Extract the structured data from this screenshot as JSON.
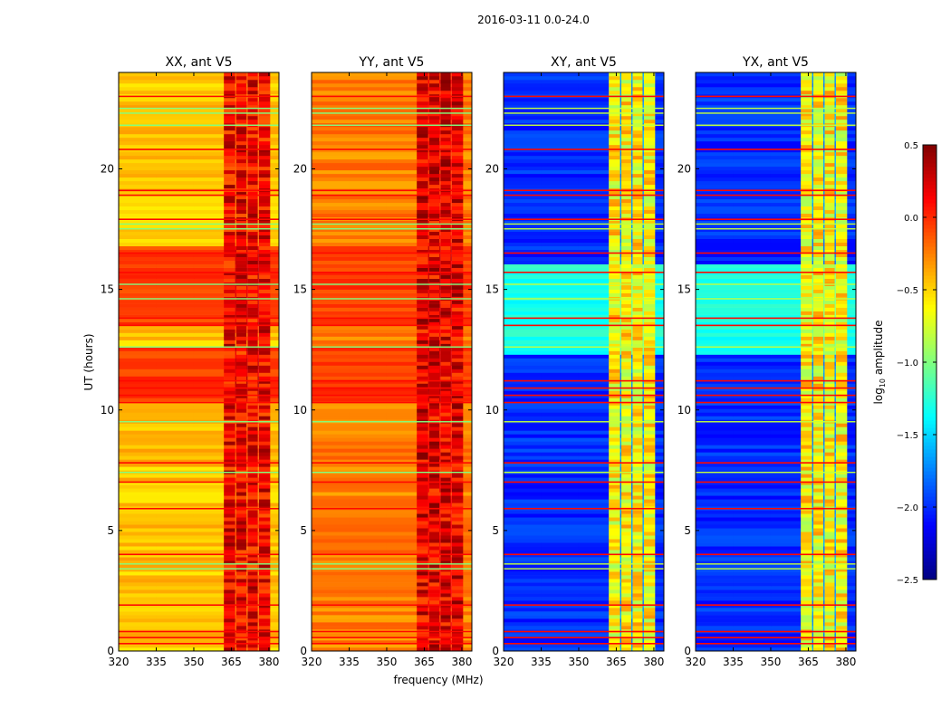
{
  "chart_data": {
    "type": "heatmap",
    "title": "2016-03-11 0.0-24.0",
    "xlabel": "frequency (MHz)",
    "ylabel": "UT (hours)",
    "xlim": [
      320,
      384
    ],
    "ylim": [
      0,
      24
    ],
    "xticks": [
      "320",
      "335",
      "350",
      "365",
      "380"
    ],
    "xtick_values": [
      320,
      335,
      350,
      365,
      380
    ],
    "yticks": [
      "0",
      "5",
      "10",
      "15",
      "20"
    ],
    "ytick_values": [
      0,
      5,
      10,
      15,
      20
    ],
    "colorbar": {
      "label_prefix": "log",
      "label_sub": "10",
      "label_suffix": " amplitude",
      "range": [
        -2.5,
        0.5
      ],
      "ticks": [
        "0.5",
        "0.0",
        "−0.5",
        "−1.0",
        "−1.5",
        "−2.0",
        "−2.5"
      ],
      "tick_values": [
        0.5,
        0.0,
        -0.5,
        -1.0,
        -1.5,
        -2.0,
        -2.5
      ],
      "colormap": "jet"
    },
    "rfi_columns_mhz": [
      [
        362,
        366.5
      ],
      [
        367,
        371
      ],
      [
        371.5,
        375.5
      ],
      [
        376,
        380.5
      ]
    ],
    "high_hours": [
      0.3,
      0.55,
      0.8,
      1.9,
      4.0,
      5.9,
      7.0,
      7.8,
      10.3,
      10.6,
      10.9,
      11.2,
      13.5,
      13.8,
      15.7,
      16.5,
      17.9,
      18.9,
      19.1,
      20.8,
      23.0
    ],
    "low_hours": [
      3.4,
      3.6,
      7.4,
      9.5,
      12.6,
      14.6,
      15.2,
      17.5,
      17.7,
      21.8,
      22.3,
      22.5
    ],
    "panels": [
      {
        "title": "XX, ant V5",
        "base_level": -0.45,
        "rfi_level": 0.15,
        "strong_band_hours": [
          [
            13.5,
            16.7
          ],
          [
            10.3,
            12.6
          ]
        ],
        "strong_band_level": -0.05
      },
      {
        "title": "YY, ant V5",
        "base_level": -0.25,
        "rfi_level": 0.2,
        "strong_band_hours": [
          [
            13.5,
            16.7
          ],
          [
            10.3,
            12.6
          ]
        ],
        "strong_band_level": -0.05
      },
      {
        "title": "XY, ant V5",
        "base_level": -2.0,
        "rfi_level": -0.6,
        "strong_band_hours": [
          [
            12.2,
            16.0
          ]
        ],
        "strong_band_level": -1.3
      },
      {
        "title": "YX, ant V5",
        "base_level": -2.0,
        "rfi_level": -0.6,
        "strong_band_hours": [
          [
            12.2,
            16.0
          ]
        ],
        "strong_band_level": -1.3
      }
    ]
  }
}
